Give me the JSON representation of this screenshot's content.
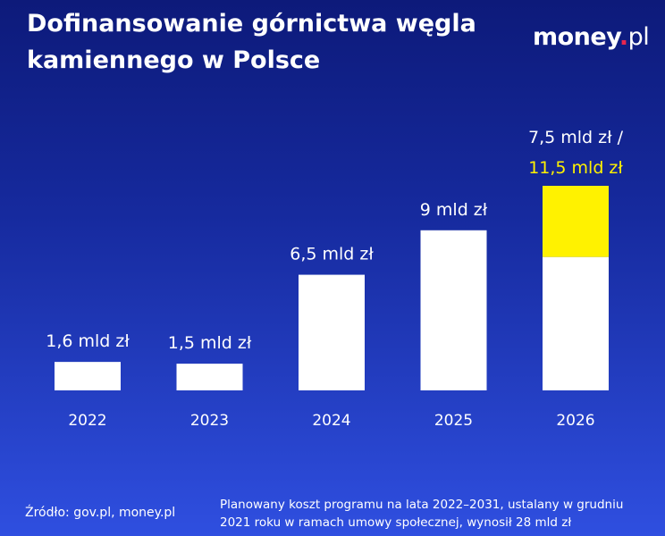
{
  "header": {
    "title_line1": "Dofinansowanie górnictwa węgla",
    "title_line2": "kamiennego w Polsce",
    "logo_main": "money",
    "logo_dot": ".",
    "logo_suffix": "pl"
  },
  "colors": {
    "bar": "#ffffff",
    "highlight": "#fff200",
    "logo_dot": "#e8264e"
  },
  "chart_data": {
    "type": "bar",
    "title": "Dofinansowanie górnictwa węgla kamiennego w Polsce",
    "xlabel": "",
    "ylabel": "",
    "unit": "mld zł",
    "categories": [
      "2022",
      "2023",
      "2024",
      "2025",
      "2026"
    ],
    "series": [
      {
        "values": [
          1.6,
          1.5,
          6.5,
          9,
          7.5
        ]
      },
      {
        "values": [
          0,
          0,
          0,
          0,
          4.0
        ]
      }
    ],
    "labels": [
      "1,6 mld zł",
      "1,5 mld zł",
      "6,5 mld zł",
      "9 mld zł",
      "7,5 mld zł /"
    ],
    "extra_label": "11,5 mld zł",
    "ylim": [
      0,
      11.5
    ],
    "grid": false,
    "legend": "none"
  },
  "footer": {
    "source": "Źródło: gov.pl, money.pl",
    "note_line1": "Planowany koszt programu na lata 2022–2031, ustalany w grudniu",
    "note_line2": "2021 roku w ramach umowy społecznej, wynosił 28 mld zł"
  }
}
